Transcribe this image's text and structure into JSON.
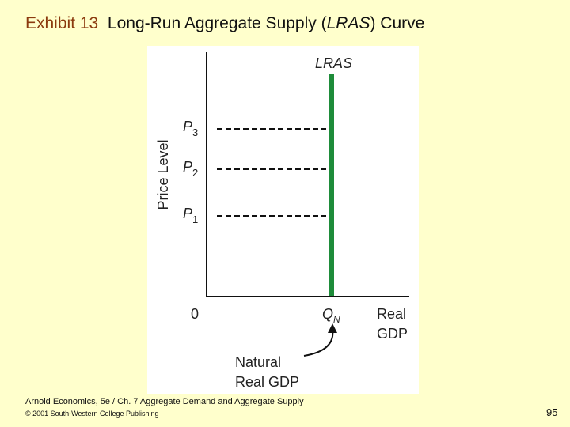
{
  "slide": {
    "exhibit": "Exhibit 13",
    "title_pre": "Long-Run Aggregate Supply (",
    "title_em": "LRAS",
    "title_post": ") Curve"
  },
  "diagram": {
    "curve_label": "LRAS",
    "y_axis_label": "Price Level",
    "x_axis_label_line1": "Real",
    "x_axis_label_line2": "GDP",
    "origin_label": "0",
    "qn_letter": "Q",
    "qn_subscript": "N",
    "price_levels": [
      {
        "letter": "P",
        "sub": "3"
      },
      {
        "letter": "P",
        "sub": "2"
      },
      {
        "letter": "P",
        "sub": "1"
      }
    ],
    "annotation_line1": "Natural",
    "annotation_line2": "Real GDP",
    "colors": {
      "lras": "#1E8C3A",
      "axes": "#111111",
      "dashes": "#111111",
      "text": "#222222"
    }
  },
  "footer": {
    "line1": "Arnold Economics, 5e / Ch. 7  Aggregate Demand and Aggregate Supply",
    "line2": "© 2001 South-Western College Publishing",
    "page_number": "95"
  }
}
